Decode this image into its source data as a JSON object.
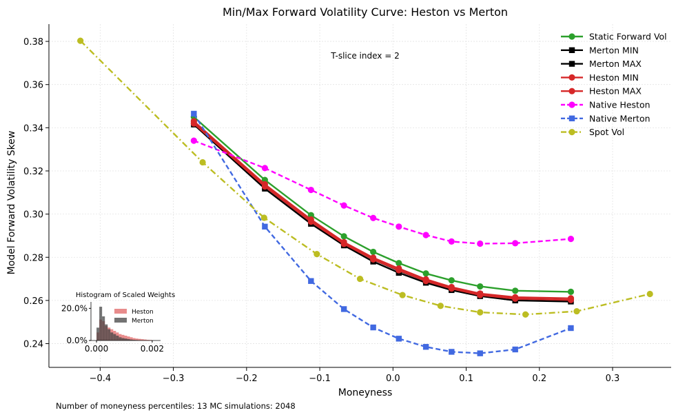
{
  "chart_data": {
    "type": "line",
    "title": "Min/Max  Forward Volatility Curve: Heston vs Merton",
    "xlabel": "Moneyness",
    "ylabel": "Model Forward Volatility Skew",
    "xlim": [
      -0.47,
      0.38
    ],
    "ylim": [
      0.229,
      0.388
    ],
    "x_ticks": [
      -0.4,
      -0.3,
      -0.2,
      -0.1,
      0.0,
      0.1,
      0.2,
      0.3
    ],
    "x_tick_labels": [
      "−0.4",
      "−0.3",
      "−0.2",
      "−0.1",
      "0.0",
      "0.1",
      "0.2",
      "0.3"
    ],
    "y_ticks": [
      0.24,
      0.26,
      0.28,
      0.3,
      0.32,
      0.34,
      0.36,
      0.38
    ],
    "y_tick_labels": [
      "0.24",
      "0.26",
      "0.28",
      "0.30",
      "0.32",
      "0.34",
      "0.36",
      "0.38"
    ],
    "grid": true,
    "legend_position": "top-right",
    "annotation": "T-slice index = 2",
    "footer": "Number of moneyness percentiles: 13   MC simulations: 2048",
    "series": [
      {
        "name": "Static Forward Vol",
        "color": "#2ca02c",
        "marker": "circle",
        "linestyle": "solid",
        "x": [
          -0.272,
          -0.175,
          -0.112,
          -0.067,
          -0.027,
          0.008,
          0.045,
          0.08,
          0.119,
          0.167,
          0.243
        ],
        "y": [
          0.345,
          0.3158,
          0.2995,
          0.2897,
          0.2825,
          0.2773,
          0.2725,
          0.2693,
          0.2665,
          0.2645,
          0.264
        ]
      },
      {
        "name": "Merton MIN",
        "color": "#000000",
        "marker": "square",
        "linestyle": "solid",
        "x": [
          -0.272,
          -0.175,
          -0.112,
          -0.067,
          -0.027,
          0.008,
          0.045,
          0.08,
          0.119,
          0.167,
          0.243
        ],
        "y": [
          0.3415,
          0.3118,
          0.2955,
          0.2855,
          0.278,
          0.2728,
          0.2682,
          0.2648,
          0.262,
          0.26,
          0.2595
        ]
      },
      {
        "name": "Merton MAX",
        "color": "#000000",
        "marker": "square",
        "linestyle": "solid",
        "x": [
          -0.272,
          -0.175,
          -0.112,
          -0.067,
          -0.027,
          0.008,
          0.045,
          0.08,
          0.119,
          0.167,
          0.243
        ],
        "y": [
          0.3425,
          0.3128,
          0.2965,
          0.2865,
          0.279,
          0.2738,
          0.269,
          0.2656,
          0.2628,
          0.2608,
          0.2602
        ]
      },
      {
        "name": "Heston MIN",
        "color": "#d62728",
        "marker": "circle",
        "linestyle": "solid",
        "x": [
          -0.272,
          -0.175,
          -0.112,
          -0.067,
          -0.027,
          0.008,
          0.045,
          0.08,
          0.119,
          0.167,
          0.243
        ],
        "y": [
          0.342,
          0.3128,
          0.2965,
          0.2862,
          0.279,
          0.274,
          0.269,
          0.2655,
          0.2625,
          0.2608,
          0.2602
        ]
      },
      {
        "name": "Heston MAX",
        "color": "#d62728",
        "marker": "circle",
        "linestyle": "solid",
        "x": [
          -0.272,
          -0.175,
          -0.112,
          -0.067,
          -0.027,
          0.008,
          0.045,
          0.08,
          0.119,
          0.167,
          0.243
        ],
        "y": [
          0.343,
          0.3138,
          0.2975,
          0.287,
          0.2798,
          0.2748,
          0.2698,
          0.2662,
          0.2632,
          0.2615,
          0.261
        ]
      },
      {
        "name": "Native Heston",
        "color": "#ff00ff",
        "marker": "circle",
        "linestyle": "dashed",
        "x": [
          -0.272,
          -0.175,
          -0.112,
          -0.067,
          -0.027,
          0.008,
          0.045,
          0.08,
          0.119,
          0.167,
          0.243
        ],
        "y": [
          0.334,
          0.3213,
          0.3112,
          0.304,
          0.2982,
          0.2942,
          0.2903,
          0.2873,
          0.2863,
          0.2865,
          0.2885
        ]
      },
      {
        "name": "Native Merton",
        "color": "#4169e1",
        "marker": "square",
        "linestyle": "dashed",
        "x": [
          -0.272,
          -0.175,
          -0.112,
          -0.067,
          -0.027,
          0.008,
          0.045,
          0.08,
          0.119,
          0.167,
          0.243
        ],
        "y": [
          0.3465,
          0.2942,
          0.269,
          0.256,
          0.2475,
          0.2423,
          0.2385,
          0.2362,
          0.2355,
          0.2373,
          0.2472
        ]
      },
      {
        "name": "Spot Vol",
        "color": "#bcbd22",
        "marker": "circle",
        "linestyle": "dashdot",
        "x": [
          -0.427,
          -0.26,
          -0.176,
          -0.104,
          -0.045,
          0.013,
          0.065,
          0.119,
          0.181,
          0.251,
          0.351
        ],
        "y": [
          0.3803,
          0.324,
          0.2983,
          0.2815,
          0.27,
          0.2625,
          0.2575,
          0.2545,
          0.2535,
          0.255,
          0.263
        ]
      }
    ],
    "inset": {
      "title": "Histogram of Scaled Weights",
      "xlim": [
        -0.0002,
        0.0023
      ],
      "ylim": [
        0,
        0.24
      ],
      "x_ticks": [
        0.0,
        0.002
      ],
      "x_tick_labels": [
        "0.000",
        "0.002"
      ],
      "y_ticks": [
        0.0,
        0.2
      ],
      "y_tick_labels": [
        "0.0%",
        "20.0%"
      ],
      "series": [
        {
          "name": "Heston",
          "color": "#e06666",
          "bins": [
            0.0,
            0.0001,
            0.0002,
            0.0003,
            0.0004,
            0.0005,
            0.0006,
            0.0007,
            0.0008,
            0.0009,
            0.001,
            0.0011,
            0.0012,
            0.0013,
            0.0014,
            0.0015,
            0.0016,
            0.0017,
            0.0018,
            0.0019,
            0.002
          ],
          "values": [
            0.05,
            0.13,
            0.12,
            0.09,
            0.08,
            0.07,
            0.06,
            0.05,
            0.04,
            0.035,
            0.03,
            0.025,
            0.02,
            0.015,
            0.012,
            0.01,
            0.008,
            0.006,
            0.004,
            0.003
          ]
        },
        {
          "name": "Merton",
          "color": "#444444",
          "bins": [
            0.0,
            0.0001,
            0.0002,
            0.0003,
            0.0004,
            0.0005,
            0.0006,
            0.0007,
            0.0008,
            0.0009,
            0.001,
            0.0011,
            0.0012,
            0.0013,
            0.0014,
            0.0015,
            0.0016,
            0.0017,
            0.0018,
            0.0019,
            0.002
          ],
          "values": [
            0.08,
            0.21,
            0.15,
            0.1,
            0.07,
            0.05,
            0.04,
            0.03,
            0.02,
            0.015,
            0.012,
            0.009,
            0.006,
            0.004,
            0.003,
            0.002,
            0.001,
            0.001,
            0.0005,
            0.0003
          ]
        }
      ]
    }
  }
}
